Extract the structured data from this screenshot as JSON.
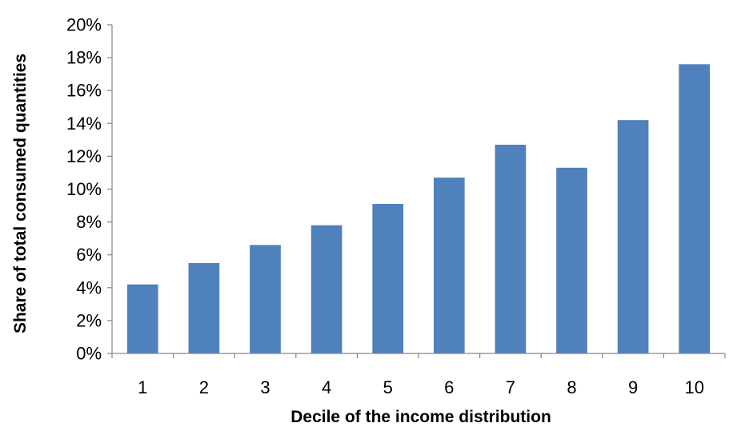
{
  "chart_data": {
    "type": "bar",
    "title": "",
    "xlabel": "Decile of the income distribution",
    "ylabel": "Share of total consumed quantities",
    "categories": [
      "1",
      "2",
      "3",
      "4",
      "5",
      "6",
      "7",
      "8",
      "9",
      "10"
    ],
    "values": [
      4.2,
      5.5,
      6.6,
      7.8,
      9.1,
      10.7,
      12.7,
      11.3,
      14.2,
      17.6
    ],
    "value_unit": "%",
    "ylim": [
      0,
      20
    ],
    "yticks": [
      0,
      2,
      4,
      6,
      8,
      10,
      12,
      14,
      16,
      18,
      20
    ],
    "ytick_labels": [
      "0%",
      "2%",
      "4%",
      "6%",
      "8%",
      "10%",
      "12%",
      "14%",
      "16%",
      "18%",
      "20%"
    ],
    "grid": false,
    "legend": "none",
    "bar_color": "#4f81bd",
    "axis_color": "#868686"
  }
}
